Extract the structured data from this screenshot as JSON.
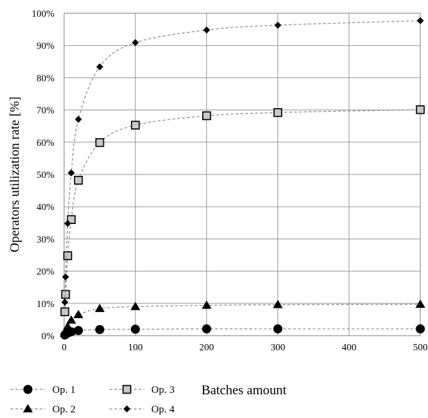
{
  "chart_data": {
    "type": "scatter",
    "title": "",
    "xlabel": "Batches amount",
    "ylabel": "Operators utilization rate [%]",
    "xlim": [
      0,
      500
    ],
    "ylim": [
      0,
      100
    ],
    "x_ticks": [
      "0",
      "100",
      "200",
      "300",
      "400",
      "500"
    ],
    "y_ticks": [
      "0%",
      "10%",
      "20%",
      "30%",
      "40%",
      "50%",
      "60%",
      "70%",
      "80%",
      "90%",
      "100%"
    ],
    "grid": true,
    "legend_position": "bottom-left",
    "trendline": "dashed gray fitted curve per series",
    "series": [
      {
        "name": "Op. 1",
        "marker": "circle",
        "x": [
          1,
          2,
          5,
          10,
          20,
          50,
          100,
          200,
          300,
          500
        ],
        "y": [
          0.2,
          0.4,
          0.8,
          1.2,
          1.6,
          1.9,
          2.0,
          2.1,
          2.1,
          2.1
        ]
      },
      {
        "name": "Op. 2",
        "marker": "triangle",
        "x": [
          1,
          2,
          5,
          10,
          20,
          50,
          100,
          200,
          300,
          500
        ],
        "y": [
          0.6,
          1.2,
          2.8,
          4.8,
          6.5,
          8.4,
          9.0,
          9.4,
          9.6,
          9.7
        ]
      },
      {
        "name": "Op. 3",
        "marker": "square",
        "x": [
          1,
          2,
          5,
          10,
          20,
          50,
          100,
          200,
          300,
          500
        ],
        "y": [
          7.4,
          12.8,
          24.8,
          36.0,
          48.2,
          59.9,
          65.3,
          68.2,
          69.2,
          70.1
        ]
      },
      {
        "name": "Op. 4",
        "marker": "diamond",
        "x": [
          1,
          2,
          5,
          10,
          20,
          50,
          100,
          200,
          300,
          500
        ],
        "y": [
          10.4,
          18.2,
          34.8,
          50.5,
          67.1,
          83.4,
          90.9,
          94.8,
          96.3,
          97.7
        ]
      }
    ]
  }
}
